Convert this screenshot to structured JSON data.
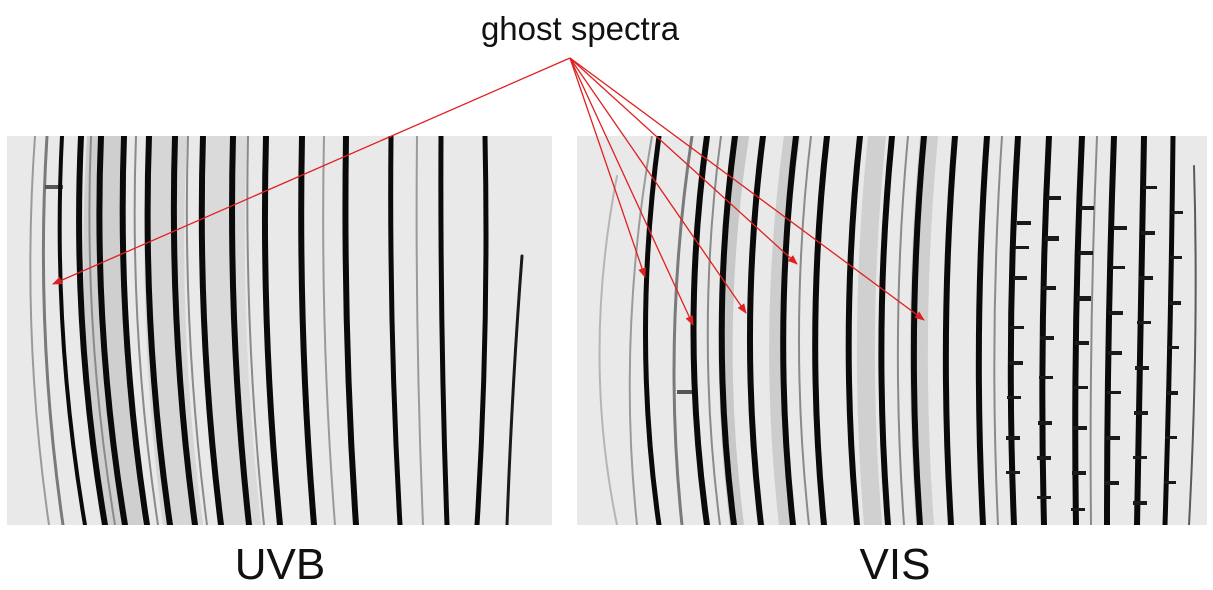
{
  "labels": {
    "ghost_spectra": "ghost spectra",
    "uvb": "UVB",
    "vis": "VIS"
  },
  "colors": {
    "background": "#ffffff",
    "panel_background": "#e9e9e9",
    "order_trace": "#0a0a0a",
    "ghost_trace": "#7a7a7a",
    "annotation_arrow": "#e02020"
  }
}
